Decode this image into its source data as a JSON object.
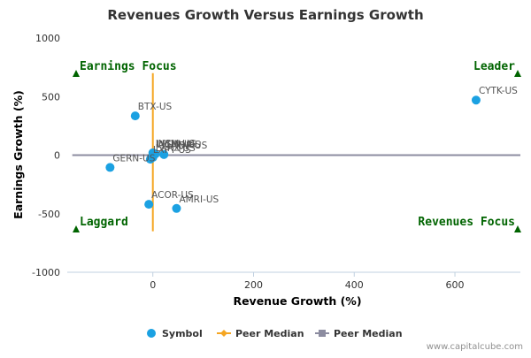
{
  "chart_data": {
    "type": "scatter",
    "title": "Revenues Growth Versus Earnings Growth",
    "xlabel": "Revenue Growth (%)",
    "ylabel": "Earnings Growth (%)",
    "xlim": [
      -170,
      730
    ],
    "ylim": [
      -1000,
      1000
    ],
    "x_ticks": [
      0,
      200,
      400,
      600
    ],
    "y_ticks": [
      1000,
      500,
      0,
      -500,
      -1000
    ],
    "grid": false,
    "legend_position": "bottom",
    "series": [
      {
        "name": "Symbol",
        "color": "#1ba1e2",
        "points": [
          {
            "label": "CYTK-US",
            "x": 642,
            "y": 470
          },
          {
            "label": "BTX-US",
            "x": -35,
            "y": 335
          },
          {
            "label": "GERN-US",
            "x": -85,
            "y": -105
          },
          {
            "label": "ACOR-US",
            "x": -8,
            "y": -420
          },
          {
            "label": "AMRI-US",
            "x": 47,
            "y": -455
          },
          {
            "label": "INSM-US",
            "x": 0,
            "y": 20
          },
          {
            "label": "LPCN-US",
            "x": 2,
            "y": 15
          },
          {
            "label": "ACHN-US",
            "x": 5,
            "y": 10
          },
          {
            "label": "LXRX-US",
            "x": 0,
            "y": -20
          },
          {
            "label": "LNDP-US",
            "x": 22,
            "y": 5
          },
          {
            "label": "LXPT-US",
            "x": -5,
            "y": -35
          }
        ]
      },
      {
        "name": "Peer Median",
        "color": "#f5a623",
        "orientation": "vertical",
        "x": 0,
        "y_range": [
          -650,
          700
        ]
      },
      {
        "name": "Peer Median",
        "color": "#8c8ca0",
        "orientation": "horizontal",
        "y": 0,
        "x_range": [
          -160,
          730
        ]
      }
    ],
    "quadrant_labels": [
      {
        "text": "Earnings Focus",
        "position": "top-left"
      },
      {
        "text": "Leader",
        "position": "top-right"
      },
      {
        "text": "Laggard",
        "position": "bottom-left"
      },
      {
        "text": "Revenues Focus",
        "position": "bottom-right"
      }
    ],
    "quadrant_color": "#006400"
  },
  "credit": "www.capitalcube.com"
}
